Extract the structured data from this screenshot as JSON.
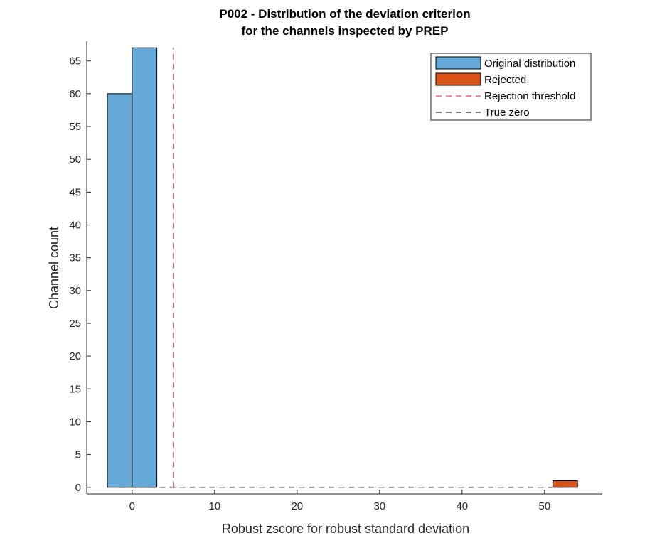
{
  "chart_data": {
    "type": "histogram",
    "title_lines": [
      "P002 - Distribution of the deviation criterion",
      "for the channels inspected by PREP"
    ],
    "xlabel": "Robust zscore for robust standard deviation",
    "ylabel": "Channel count",
    "xlim": [
      -5.5,
      57
    ],
    "ylim": [
      -1,
      68
    ],
    "xticks": [
      0,
      10,
      20,
      30,
      40,
      50
    ],
    "yticks": [
      0,
      5,
      10,
      15,
      20,
      25,
      30,
      35,
      40,
      45,
      50,
      55,
      60,
      65
    ],
    "series": [
      {
        "name": "Original distribution",
        "color": "#65a9d9",
        "bins": [
          {
            "x0": -3,
            "x1": 0,
            "count": 60
          },
          {
            "x0": 0,
            "x1": 3,
            "count": 67
          }
        ]
      },
      {
        "name": "Rejected",
        "color": "#d95319",
        "bins": [
          {
            "x0": 51,
            "x1": 54,
            "count": 1
          }
        ]
      }
    ],
    "lines": [
      {
        "name": "Rejection threshold",
        "color": "#e8474e",
        "style": "dashed",
        "orientation": "vertical",
        "x": 5,
        "y_range": [
          0,
          67
        ]
      },
      {
        "name": "True zero",
        "color": "#333333",
        "style": "dashed",
        "orientation": "horizontal",
        "y": 0,
        "x_range": [
          -1.5,
          53
        ]
      }
    ],
    "legend": {
      "position": "top-right",
      "entries": [
        "Original distribution",
        "Rejected",
        "Rejection threshold",
        "True zero"
      ]
    },
    "grid": false
  }
}
